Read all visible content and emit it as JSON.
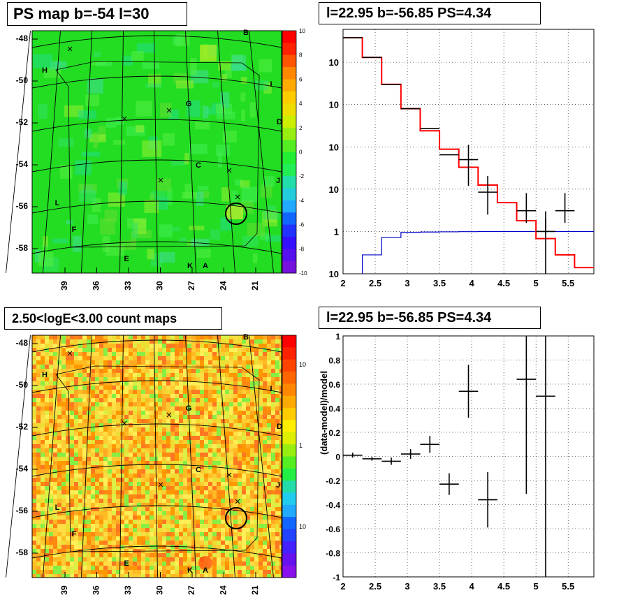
{
  "colors": {
    "green_map": "#22dd22",
    "hist_black": "#000000",
    "model_red": "#ff0000",
    "bkg_blue": "#0000cc"
  },
  "panels": {
    "tl": {
      "title": "PS map b=-54 l=30"
    },
    "tr": {
      "title": "l=22.95 b=-56.85 PS=4.34"
    },
    "bl": {
      "title": "2.50<logE<3.00 count maps"
    },
    "br": {
      "title": "l=22.95 b=-56.85 PS=4.34"
    }
  },
  "chart_data": [
    {
      "type": "heatmap",
      "title": "PS map b=-54 l=30",
      "x_ticks": [
        "39",
        "36",
        "33",
        "30",
        "27",
        "24",
        "21"
      ],
      "y_ticks": [
        "-48",
        "-50",
        "-52",
        "-54",
        "-56",
        "-58"
      ],
      "colorbar": {
        "range": [
          -10,
          10
        ],
        "ticks": [
          "10",
          "8",
          "6",
          "4",
          "2",
          "0",
          "-2",
          "-4",
          "-6",
          "-8",
          "-10"
        ]
      },
      "annotations": [
        "B",
        "H",
        "I",
        "G",
        "D",
        "C",
        "J",
        "L",
        "F",
        "E",
        "K",
        "A"
      ]
    },
    {
      "type": "line",
      "title": "l=22.95 b=-56.85 PS=4.34",
      "xlim": [
        2,
        5.9
      ],
      "ylim": [
        0.1,
        60000
      ],
      "y_scale": "log",
      "x_ticks": [
        "2",
        "2.5",
        "3",
        "3.5",
        "4",
        "4.5",
        "5",
        "5.5"
      ],
      "y_ticks": [
        "10<sup>-1</sup>",
        "1",
        "10",
        "10<sup>2</sup>",
        "10<sup>3</sup>",
        "10<sup>4</sup>"
      ],
      "data_points": [
        {
          "x": 2.15,
          "y": 38000,
          "xerr": 0.15
        },
        {
          "x": 2.45,
          "y": 13000,
          "xerr": 0.15
        },
        {
          "x": 2.75,
          "y": 3000,
          "xerr": 0.15
        },
        {
          "x": 3.05,
          "y": 800,
          "xerr": 0.15
        },
        {
          "x": 3.35,
          "y": 270,
          "xerr": 0.15
        },
        {
          "x": 3.65,
          "y": 65,
          "xerr": 0.15
        },
        {
          "x": 3.95,
          "y": 50,
          "xerr": 0.15,
          "yerr_lo": 38,
          "yerr_hi": 62
        },
        {
          "x": 4.25,
          "y": 8.5,
          "xerr": 0.15,
          "yerr_lo": 6,
          "yerr_hi": 12
        },
        {
          "x": 4.85,
          "y": 3.1,
          "xerr": 0.15,
          "yerr_lo": 1.5,
          "yerr_hi": 5
        },
        {
          "x": 5.15,
          "y": 1.0,
          "xerr": 0.15,
          "yerr_lo": 0.1,
          "yerr_hi": 2
        },
        {
          "x": 5.45,
          "y": 3.1,
          "xerr": 0.15,
          "yerr_lo": 1.5,
          "yerr_hi": 5
        }
      ],
      "model_steps": [
        [
          2.0,
          38000
        ],
        [
          2.3,
          13000
        ],
        [
          2.6,
          3000
        ],
        [
          2.9,
          800
        ],
        [
          3.2,
          240
        ],
        [
          3.5,
          88
        ],
        [
          3.8,
          33
        ],
        [
          4.1,
          12.5
        ],
        [
          4.4,
          4.8
        ],
        [
          4.7,
          1.8
        ],
        [
          5.0,
          0.68
        ],
        [
          5.3,
          0.28
        ],
        [
          5.6,
          0.14
        ],
        [
          5.9,
          0.14
        ]
      ],
      "background_steps": [
        [
          2.3,
          0.28
        ],
        [
          2.6,
          0.72
        ],
        [
          2.9,
          0.95
        ],
        [
          3.2,
          0.97
        ],
        [
          3.5,
          0.98
        ],
        [
          3.8,
          0.99
        ],
        [
          4.1,
          1.0
        ],
        [
          4.4,
          1.0
        ],
        [
          4.7,
          1.0
        ],
        [
          5.0,
          1.0
        ],
        [
          5.3,
          1.0
        ],
        [
          5.6,
          1.0
        ],
        [
          5.9,
          1.0
        ]
      ]
    },
    {
      "type": "heatmap",
      "title": "2.50<logE<3.00 count maps",
      "x_ticks": [
        "39",
        "36",
        "33",
        "30",
        "27",
        "24",
        "21"
      ],
      "y_ticks": [
        "-48",
        "-50",
        "-52",
        "-54",
        "-56",
        "-58"
      ],
      "colorbar": {
        "scale": "log",
        "ticks": [
          "10",
          "1",
          "10<sup>-1</sup>"
        ]
      },
      "annotations": [
        "B",
        "H",
        "I",
        "G",
        "D",
        "C",
        "J",
        "L",
        "F",
        "E",
        "K",
        "A"
      ]
    },
    {
      "type": "scatter",
      "title": "l=22.95 b=-56.85 PS=4.34",
      "ylabel": "(data-model)/model",
      "xlim": [
        2,
        5.9
      ],
      "ylim": [
        -1,
        1
      ],
      "x_ticks": [
        "2",
        "2.5",
        "3",
        "3.5",
        "4",
        "4.5",
        "5",
        "5.5"
      ],
      "y_ticks": [
        "1",
        "0.8",
        "0.6",
        "0.4",
        "0.2",
        "0",
        "-0.2",
        "-0.4",
        "-0.6",
        "-0.8",
        "-1"
      ],
      "points": [
        {
          "x": 2.15,
          "y": 0.01,
          "yerr": 0.02
        },
        {
          "x": 2.45,
          "y": -0.02,
          "yerr": 0.015
        },
        {
          "x": 2.75,
          "y": -0.04,
          "yerr": 0.03
        },
        {
          "x": 3.05,
          "y": 0.02,
          "yerr": 0.04
        },
        {
          "x": 3.35,
          "y": 0.1,
          "yerr": 0.07
        },
        {
          "x": 3.65,
          "y": -0.23,
          "yerr": 0.09
        },
        {
          "x": 3.95,
          "y": 0.54,
          "yerr": 0.22
        },
        {
          "x": 4.25,
          "y": -0.36,
          "yerr": 0.23
        },
        {
          "x": 4.85,
          "y": 0.64,
          "yerr": 0.95
        },
        {
          "x": 5.15,
          "y": 0.5,
          "yerr": 1.5
        }
      ]
    }
  ]
}
